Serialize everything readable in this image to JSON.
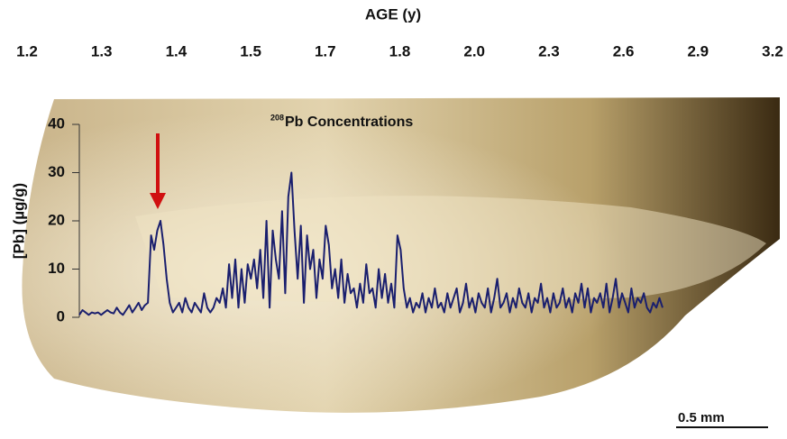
{
  "chart_data": {
    "type": "line",
    "title": "AGE (y)",
    "top_axis_labels": [
      "1.2",
      "1.3",
      "1.4",
      "1.5",
      "1.7",
      "1.8",
      "2.0",
      "2.3",
      "2.6",
      "2.9",
      "3.2"
    ],
    "ylabel": "[Pb] (µg/g)",
    "annotation": {
      "superscript": "208",
      "text": "Pb Concentrations"
    },
    "scale_bar": "0.5 mm",
    "ylim": [
      0,
      40
    ],
    "yticks": [
      0,
      10,
      20,
      30,
      40
    ],
    "series": [
      {
        "name": "208Pb",
        "color": "#1a1f6e",
        "values": [
          0.5,
          1.5,
          1,
          0.5,
          1,
          0.8,
          1,
          0.5,
          1,
          1.5,
          1,
          0.8,
          2,
          1,
          0.5,
          1.5,
          2.5,
          1,
          2,
          3,
          1.5,
          2.5,
          3,
          17,
          14,
          18,
          20,
          15,
          8,
          3,
          1,
          2,
          3,
          1,
          4,
          2,
          1,
          3,
          2,
          1,
          5,
          2,
          1,
          2,
          4,
          3,
          6,
          2,
          11,
          4,
          12,
          2,
          10,
          3,
          11,
          8,
          12,
          6,
          14,
          4,
          20,
          2,
          18,
          12,
          8,
          22,
          5,
          25,
          30,
          18,
          8,
          19,
          3,
          17,
          10,
          14,
          4,
          12,
          8,
          19,
          15,
          6,
          10,
          4,
          12,
          3,
          9,
          5,
          6,
          2,
          7,
          3,
          11,
          5,
          6,
          2,
          10,
          4,
          9,
          3,
          7,
          2,
          17,
          14,
          6,
          2,
          4,
          1,
          3,
          2,
          5,
          1,
          4,
          2,
          6,
          2,
          3,
          1,
          5,
          2,
          4,
          6,
          1,
          3,
          7,
          2,
          4,
          1,
          5,
          3,
          2,
          6,
          1,
          4,
          8,
          2,
          3,
          5,
          1,
          4,
          2,
          6,
          3,
          2,
          5,
          1,
          4,
          3,
          7,
          2,
          4,
          1,
          5,
          2,
          3,
          6,
          2,
          4,
          1,
          5,
          3,
          7,
          2,
          6,
          1,
          4,
          3,
          5,
          2,
          7,
          1,
          4,
          8,
          2,
          5,
          3,
          1,
          6,
          2,
          4,
          3,
          5,
          2,
          1,
          3,
          2,
          4,
          2
        ]
      }
    ]
  }
}
